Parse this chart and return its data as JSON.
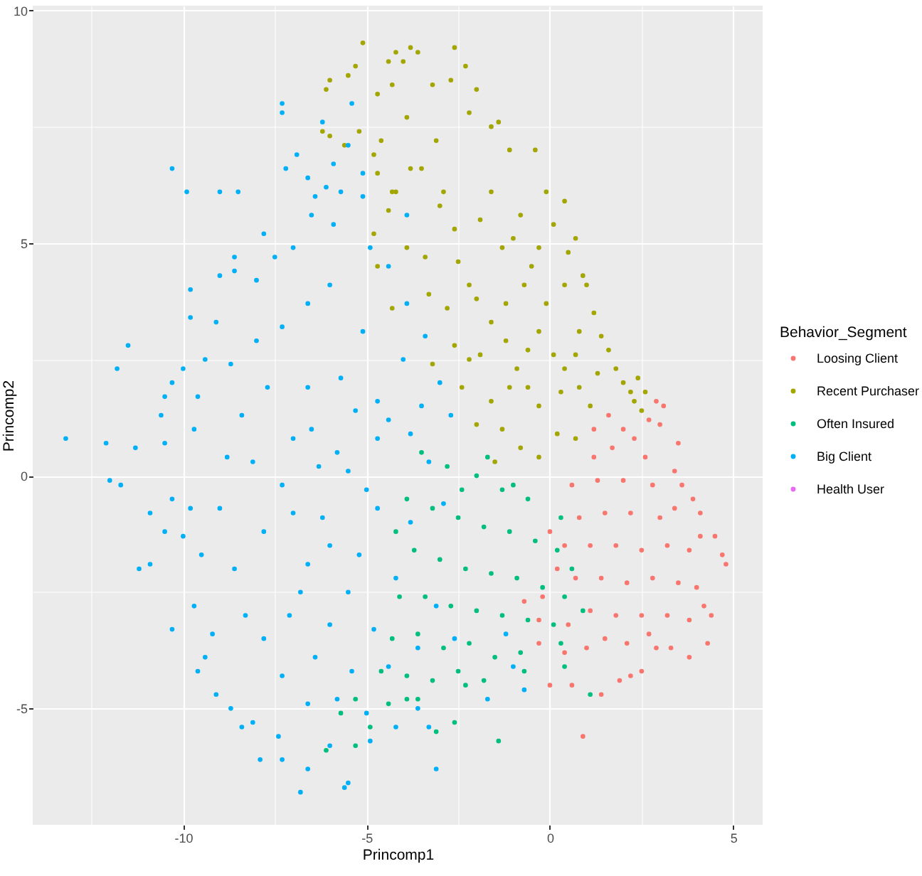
{
  "chart_data": {
    "type": "scatter",
    "xlabel": "Princomp1",
    "ylabel": "Princomp2",
    "legend_title": "Behavior_Segment",
    "legend": "right",
    "grid": true,
    "marker": "circle",
    "xlim": [
      -14.1,
      5.8
    ],
    "ylim": [
      -7.5,
      10.1
    ],
    "xticks": [
      {
        "value": -12.5,
        "label": null
      },
      -10,
      {
        "value": -7.5,
        "label": null
      },
      -5,
      {
        "value": -2.5,
        "label": null
      },
      0,
      {
        "value": 2.5,
        "label": null
      },
      5
    ],
    "yticks": [
      -5,
      {
        "value": -2.5,
        "label": null
      },
      0,
      {
        "value": 2.5,
        "label": null
      },
      5,
      {
        "value": 7.5,
        "label": null
      },
      10
    ],
    "series": [
      {
        "name": "Loosing Client",
        "color": "#f8766d",
        "x": [
          3.1,
          2.9,
          4.4,
          4.3,
          3.8,
          4.8,
          4.7,
          4.5,
          4.1,
          4.1,
          3.9,
          3.6,
          3.4,
          3.5,
          3.0,
          0.0,
          0.6,
          1.4,
          0.9,
          1.9,
          2.2,
          2.5,
          2.9,
          3.3,
          1.0,
          0.4,
          -0.3,
          -0.3,
          -0.7,
          2.3,
          1.6,
          2.0,
          1.2,
          1.7,
          2.6,
          0.6,
          1.3,
          2.0,
          2.8,
          0.8,
          1.5,
          2.2,
          3.0,
          3.4,
          0.4,
          1.1,
          1.8,
          2.5,
          3.2,
          3.8,
          0.7,
          1.4,
          2.1,
          2.8,
          3.5,
          4.0,
          1.1,
          1.8,
          2.5,
          3.2,
          3.8,
          4.2,
          1.5,
          2.1,
          2.7,
          0.2,
          -0.2,
          0.0,
          1.2,
          2.7,
          0.5
        ],
        "values": [
          1.5,
          1.6,
          -3.0,
          -3.6,
          -3.9,
          -1.9,
          -1.7,
          -1.3,
          -1.3,
          -0.8,
          -0.5,
          -0.2,
          0.1,
          0.7,
          1.1,
          -4.5,
          -4.5,
          -4.7,
          -5.6,
          -4.4,
          -4.3,
          -4.2,
          -3.7,
          -3.7,
          -3.7,
          -3.8,
          -3.6,
          -3.1,
          -2.7,
          0.8,
          1.3,
          1.0,
          0.4,
          0.6,
          0.4,
          -0.2,
          -0.1,
          -0.1,
          -0.2,
          -0.9,
          -0.8,
          -0.8,
          -0.9,
          -0.7,
          -1.5,
          -1.5,
          -1.5,
          -1.6,
          -1.5,
          -1.6,
          -2.2,
          -2.2,
          -2.3,
          -2.2,
          -2.3,
          -2.4,
          -2.9,
          -3.0,
          -3.0,
          -3.0,
          -3.1,
          -2.8,
          -3.5,
          -3.6,
          -3.4,
          -2.0,
          -2.6,
          -1.2,
          1.0,
          1.2,
          -3.2
        ]
      },
      {
        "name": "Recent Purchaser",
        "color": "#a3a500",
        "x": [
          -5.1,
          -6.1,
          -6.0,
          -5.5,
          -5.3,
          -6.2,
          -6.0,
          -5.6,
          -5.2,
          -4.7,
          -4.2,
          -4.4,
          -3.8,
          -3.6,
          -4.3,
          -4.6,
          -4.8,
          -4.7,
          -4.3,
          -4.8,
          -4.4,
          -4.7,
          -4.3,
          -3.9,
          -3.8,
          -3.9,
          -4.0,
          -2.6,
          -3.2,
          -2.7,
          -2.3,
          -2.0,
          -2.2,
          -1.6,
          -1.4,
          -1.1,
          -0.4,
          -0.1,
          0.7,
          0.5,
          0.9,
          1.0,
          1.2,
          1.4,
          1.6,
          1.8,
          2.4,
          2.6,
          2.3,
          2.0,
          2.2,
          2.5,
          -3.1,
          -3.5,
          -2.9,
          -1.6,
          -0.8,
          -4.2,
          -2.6,
          -1.3,
          -0.3,
          0.1,
          0.4,
          -3.4,
          -2.2,
          -0.7,
          0.4,
          -1.6,
          -0.3,
          0.8,
          -2.2,
          -0.9,
          0.4,
          1.3,
          -1.6,
          -0.3,
          1.1,
          -3.0,
          -2.5,
          -1.9,
          -1.0,
          -0.5,
          -2.8,
          -2.0,
          -1.2,
          -0.1,
          -2.6,
          -1.9,
          -1.2,
          -0.6,
          0.1,
          0.7,
          -2.4,
          -1.1,
          -0.6,
          0.3,
          0.8,
          -2.0,
          -1.3,
          -0.8,
          0.2,
          0.7,
          -1.5,
          -0.3,
          -3.3,
          -3.2
        ],
        "values": [
          9.3,
          8.3,
          8.5,
          8.6,
          8.8,
          7.4,
          7.3,
          7.1,
          7.4,
          8.2,
          9.1,
          8.9,
          9.2,
          9.1,
          8.4,
          7.2,
          6.9,
          6.5,
          6.1,
          5.2,
          5.7,
          4.5,
          3.6,
          4.9,
          6.6,
          7.7,
          8.9,
          9.2,
          8.4,
          8.5,
          8.8,
          8.3,
          7.8,
          7.5,
          7.6,
          7.0,
          7.0,
          6.1,
          5.1,
          4.8,
          4.3,
          4.1,
          3.5,
          3.0,
          2.7,
          2.3,
          2.1,
          1.8,
          1.6,
          2.0,
          1.8,
          1.4,
          7.2,
          6.6,
          6.1,
          6.1,
          5.6,
          6.1,
          5.3,
          4.9,
          4.9,
          5.4,
          5.9,
          4.7,
          4.1,
          4.1,
          4.1,
          3.3,
          3.1,
          3.1,
          2.5,
          2.3,
          2.3,
          2.2,
          1.6,
          1.5,
          1.5,
          5.8,
          4.6,
          5.5,
          5.1,
          4.5,
          3.6,
          3.8,
          3.7,
          3.7,
          2.8,
          2.6,
          2.9,
          2.7,
          2.6,
          2.6,
          1.9,
          1.9,
          1.9,
          1.8,
          1.9,
          1.1,
          1.0,
          0.6,
          0.9,
          0.8,
          0.3,
          0.4,
          3.9,
          2.4
        ]
      },
      {
        "name": "Often Insured",
        "color": "#00bf7d",
        "x": [
          -3.5,
          -2.8,
          -2.0,
          -1.3,
          -0.6,
          -3.9,
          -3.2,
          -2.5,
          -1.8,
          -1.1,
          -0.4,
          0.2,
          -3.7,
          -3.0,
          -2.3,
          -1.6,
          -0.9,
          -0.2,
          0.4,
          -4.1,
          -3.4,
          -2.7,
          -2.0,
          -1.3,
          -0.6,
          0.1,
          -4.3,
          -3.6,
          -2.9,
          -2.2,
          -1.5,
          -0.8,
          -4.6,
          -3.9,
          -3.2,
          -2.5,
          -1.8,
          -5.3,
          -4.4,
          -3.6,
          -2.3,
          -3.1,
          -2.6,
          -0.7,
          0.4,
          1.1,
          -1.4,
          -6.1,
          -5.3,
          -5.7,
          -4.9,
          -3.9,
          -1.0,
          0.3,
          0.6,
          0.9,
          0.3,
          -4.2,
          -2.4,
          -1.7
        ],
        "values": [
          0.5,
          0.2,
          0.0,
          -0.3,
          -0.5,
          -0.5,
          -0.7,
          -0.9,
          -1.1,
          -1.2,
          -1.4,
          -1.6,
          -1.6,
          -1.8,
          -2.0,
          -2.1,
          -2.2,
          -2.4,
          -2.6,
          -2.6,
          -2.6,
          -2.8,
          -2.9,
          -3.0,
          -3.1,
          -3.2,
          -3.5,
          -3.4,
          -3.7,
          -3.6,
          -3.9,
          -3.8,
          -4.2,
          -4.3,
          -4.4,
          -4.2,
          -4.4,
          -4.8,
          -4.9,
          -4.8,
          -4.5,
          -5.5,
          -5.3,
          -4.2,
          -4.1,
          -4.7,
          -5.7,
          -5.9,
          -5.8,
          -5.1,
          -5.4,
          -4.8,
          -0.2,
          -0.9,
          -2.0,
          -2.9,
          -3.6,
          -1.2,
          -0.3,
          0.4
        ]
      },
      {
        "name": "Big Client",
        "color": "#00b0f6",
        "x": [
          -13.2,
          -12.1,
          -11.3,
          -12.0,
          -11.7,
          -10.9,
          -11.2,
          -10.9,
          -10.3,
          -10.5,
          -10.3,
          -10.3,
          -9.9,
          -9.0,
          -8.5,
          -11.5,
          -11.8,
          -7.3,
          -7.3,
          -9.8,
          -9.8,
          -9.0,
          -8.6,
          -7.8,
          -6.6,
          -6.2,
          -7.2,
          -6.9,
          -6.4,
          -5.4,
          -5.9,
          -6.1,
          -5.5,
          -5.7,
          -5.1,
          -5.1,
          -6.5,
          -5.9,
          -7.5,
          -8.0,
          -7.0,
          -8.6,
          -9.1,
          -9.4,
          -8.7,
          -8.0,
          -7.3,
          -6.6,
          -6.0,
          -10.0,
          -10.3,
          -10.5,
          -9.6,
          -10.6,
          -9.7,
          -9.6,
          -9.1,
          -8.7,
          -8.4,
          -7.9,
          -7.3,
          -6.8,
          -5.6,
          -5.5,
          -6.6,
          -7.4,
          -8.1,
          -9.2,
          -9.4,
          -10.0,
          -9.8,
          -9.7,
          -10.5,
          -8.8,
          -9.0,
          -9.5,
          -8.6,
          -8.3,
          -7.8,
          -7.3,
          -6.6,
          -6.0,
          -4.9,
          -4.2,
          -7.8,
          -7.3,
          -8.1,
          -7.0,
          -6.2,
          -6.8,
          -6.0,
          -5.2,
          -5.5,
          -4.7,
          -4.7,
          -4.4,
          -4.9,
          -4.4,
          -3.9,
          -5.1,
          -4.0,
          -4.7,
          -5.7,
          -6.6,
          -7.7,
          -8.4,
          -3.9,
          -3.4,
          -3.0,
          -2.7,
          -3.5,
          -6.5,
          -5.8,
          -5.0,
          -6.0,
          -5.5,
          -4.8,
          -4.2,
          -3.8,
          -3.3,
          -2.9,
          -3.1,
          -3.6,
          -4.4,
          -3.8,
          -5.3,
          -6.3,
          -7.0,
          -6.6,
          -7.1,
          -6.4,
          -5.4,
          -5.8,
          -5.0,
          -1.7,
          -3.1,
          -0.7,
          -3.6,
          -3.3,
          -1.0,
          -2.6,
          -1.2
        ],
        "values": [
          0.8,
          0.7,
          0.6,
          -0.1,
          -0.2,
          -0.8,
          -2.0,
          -1.9,
          -3.3,
          -1.2,
          -0.5,
          6.6,
          6.1,
          6.1,
          6.1,
          2.8,
          2.3,
          8.0,
          7.8,
          4.0,
          3.4,
          4.3,
          4.7,
          5.2,
          6.4,
          7.6,
          6.6,
          6.9,
          6.0,
          8.0,
          6.7,
          6.2,
          7.1,
          6.1,
          6.5,
          6.0,
          5.6,
          5.4,
          4.7,
          4.2,
          4.9,
          4.4,
          3.3,
          2.5,
          2.4,
          2.9,
          3.2,
          3.7,
          4.1,
          2.3,
          2.0,
          1.7,
          1.7,
          1.3,
          -2.8,
          -4.2,
          -4.7,
          -5.0,
          -5.4,
          -6.1,
          -6.1,
          -6.8,
          -6.7,
          -6.6,
          -6.3,
          -5.6,
          -5.3,
          -3.4,
          -3.9,
          -1.3,
          -0.7,
          1.0,
          0.7,
          0.4,
          -0.7,
          -1.7,
          -2.0,
          -3.0,
          -3.5,
          -4.3,
          -4.9,
          -5.8,
          -5.7,
          -5.4,
          -1.2,
          -0.2,
          0.3,
          0.8,
          -0.9,
          -2.5,
          -3.2,
          -1.7,
          0.1,
          0.8,
          -0.7,
          -4.1,
          4.9,
          4.5,
          3.7,
          3.1,
          2.5,
          1.6,
          2.1,
          1.9,
          1.9,
          1.3,
          5.6,
          3.0,
          2.0,
          1.3,
          1.5,
          1.0,
          0.5,
          -0.3,
          -1.5,
          -2.5,
          -3.3,
          -2.2,
          -1.0,
          0.3,
          -0.6,
          -2.8,
          -3.7,
          1.2,
          0.9,
          1.4,
          0.2,
          -0.8,
          -1.9,
          -3.0,
          -3.9,
          -4.2,
          -4.8,
          -5.1,
          -4.8,
          -6.3,
          -4.6,
          -5.0,
          -5.4,
          -4.1,
          -3.5,
          -3.4
        ]
      },
      {
        "name": "Health User",
        "color": "#e76bf3"
      }
    ]
  }
}
